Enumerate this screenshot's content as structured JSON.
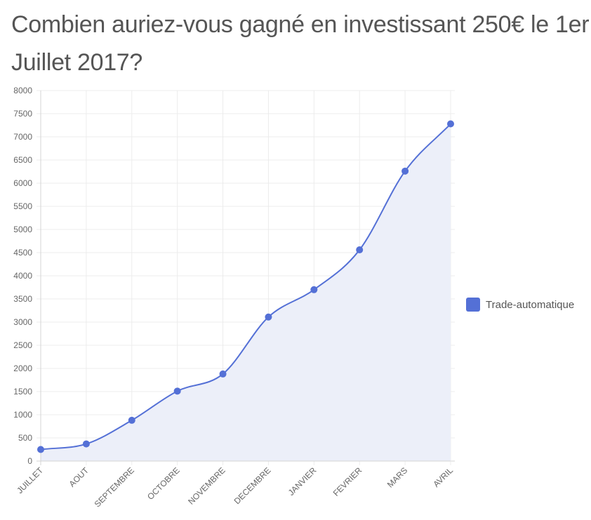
{
  "page": {
    "title": "Combien auriez-vous gagné en investissant 250€ le 1er Juillet 2017?"
  },
  "chart_data": {
    "type": "area",
    "categories": [
      "JUILLET",
      "AOUT",
      "SEPTEMBRE",
      "OCTOBRE",
      "NOVEMBRE",
      "DECEMBRE",
      "JANVIER",
      "FEVRIER",
      "MARS",
      "AVRIL"
    ],
    "series": [
      {
        "name": "Trade-automatique",
        "values": [
          250,
          370,
          880,
          1510,
          1880,
          3110,
          3700,
          4560,
          6260,
          7280
        ],
        "color": "#5470d6",
        "fill": "#eceff9"
      }
    ],
    "yticks": [
      "0",
      "500",
      "1000",
      "1500",
      "2000",
      "2500",
      "3000",
      "3500",
      "4000",
      "4500",
      "5000",
      "5500",
      "6000",
      "6500",
      "7000",
      "7500",
      "8000"
    ],
    "ylim": [
      0,
      8000
    ],
    "grid": true,
    "legend_position": "right",
    "xlabel": "",
    "ylabel": ""
  }
}
